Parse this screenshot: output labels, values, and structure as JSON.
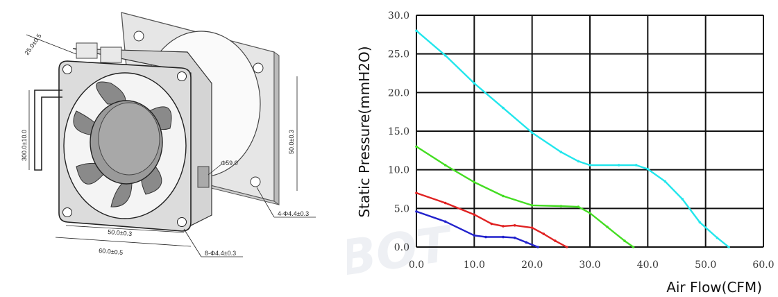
{
  "drawing": {
    "dims": {
      "depth": "25.0±0.5",
      "lead_length": "300.0±10.0",
      "inner_width": "50.0±0.3",
      "outer_width": "60.0±0.5",
      "hole_spacing": "50.0±0.3",
      "hub_diameter": "Φ59.0",
      "gasket_holes": "4-Φ4.4±0.3",
      "fan_holes": "8-Φ4.4±0.3"
    }
  },
  "chart_data": {
    "type": "line",
    "xlabel": "Air Flow(CFM)",
    "ylabel": "Static Pressure(mmH2O)",
    "xlim": [
      0,
      60
    ],
    "ylim": [
      0,
      30
    ],
    "xticks": [
      "0.0",
      "10.0",
      "20.0",
      "30.0",
      "40.0",
      "50.0",
      "60.0"
    ],
    "yticks": [
      "0.0",
      "5.0",
      "10.0",
      "15.0",
      "20.0",
      "25.0",
      "30.0"
    ],
    "grid": true,
    "series": [
      {
        "color": "#22e6ec",
        "points": [
          [
            0,
            28
          ],
          [
            5,
            24.8
          ],
          [
            10,
            21.2
          ],
          [
            15,
            18
          ],
          [
            20,
            14.8
          ],
          [
            25,
            12.3
          ],
          [
            28,
            11.1
          ],
          [
            30,
            10.6
          ],
          [
            35,
            10.6
          ],
          [
            38,
            10.6
          ],
          [
            40,
            10.1
          ],
          [
            43,
            8.5
          ],
          [
            46,
            6.2
          ],
          [
            49,
            3.2
          ],
          [
            52,
            1.2
          ],
          [
            54,
            0
          ]
        ]
      },
      {
        "color": "#44dd22",
        "points": [
          [
            0,
            13
          ],
          [
            5,
            10.6
          ],
          [
            10,
            8.4
          ],
          [
            15,
            6.6
          ],
          [
            20,
            5.4
          ],
          [
            25,
            5.3
          ],
          [
            28,
            5.2
          ],
          [
            30,
            4.4
          ],
          [
            33,
            2.6
          ],
          [
            36,
            0.8
          ],
          [
            37.5,
            0
          ]
        ]
      },
      {
        "color": "#e02222",
        "points": [
          [
            0,
            7
          ],
          [
            5,
            5.7
          ],
          [
            10,
            4.2
          ],
          [
            13,
            3
          ],
          [
            15,
            2.7
          ],
          [
            17,
            2.8
          ],
          [
            20,
            2.5
          ],
          [
            22,
            1.7
          ],
          [
            24,
            0.8
          ],
          [
            26,
            0
          ]
        ]
      },
      {
        "color": "#2222cc",
        "points": [
          [
            0,
            4.6
          ],
          [
            5,
            3.3
          ],
          [
            10,
            1.5
          ],
          [
            12,
            1.3
          ],
          [
            15,
            1.3
          ],
          [
            17,
            1.2
          ],
          [
            19,
            0.6
          ],
          [
            21,
            0
          ]
        ]
      }
    ]
  },
  "watermark": "OASBOT"
}
